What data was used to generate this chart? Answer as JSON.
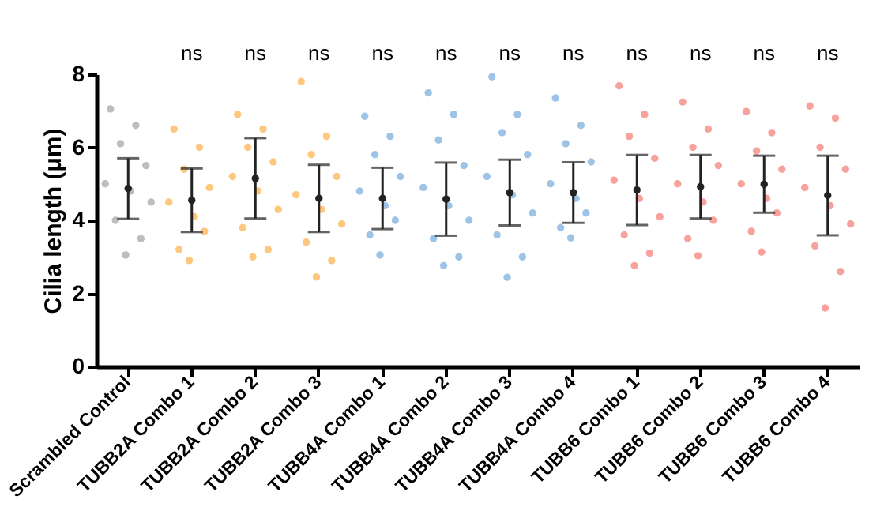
{
  "chart_data": {
    "type": "scatter",
    "ylabel": "Cilia length (μm)",
    "categories": [
      "Scrambled Control",
      "TUBB2A Combo 1",
      "TUBB2A Combo 2",
      "TUBB2A Combo 3",
      "TUBB4A Combo 1",
      "TUBB4A Combo 2",
      "TUBB4A Combo 3",
      "TUBB4A Combo 4",
      "TUBB6 Combo 1",
      "TUBB6 Combo 2",
      "TUBB6 Combo 3",
      "TUBB6 Combo 4"
    ],
    "ylim": [
      0,
      8
    ],
    "yticks": [
      0,
      2,
      4,
      6,
      8
    ],
    "grid": false,
    "legend": false,
    "marker": "circle",
    "series": [
      {
        "color": "#bdbdbd",
        "x": [
          "Scrambled Control",
          "Scrambled Control",
          "Scrambled Control",
          "Scrambled Control",
          "Scrambled Control",
          "Scrambled Control",
          "Scrambled Control",
          "Scrambled Control",
          "Scrambled Control",
          "Scrambled Control"
        ],
        "values": [
          5.0,
          7.05,
          4.0,
          6.1,
          3.05,
          4.8,
          6.6,
          3.5,
          5.5,
          4.5
        ]
      },
      {
        "color": "#fdc77e",
        "x": [
          "TUBB2A Combo 1",
          "TUBB2A Combo 1",
          "TUBB2A Combo 1",
          "TUBB2A Combo 1",
          "TUBB2A Combo 1",
          "TUBB2A Combo 1",
          "TUBB2A Combo 1",
          "TUBB2A Combo 1",
          "TUBB2A Combo 1",
          "TUBB2A Combo 2",
          "TUBB2A Combo 2",
          "TUBB2A Combo 2",
          "TUBB2A Combo 2",
          "TUBB2A Combo 2",
          "TUBB2A Combo 2",
          "TUBB2A Combo 2",
          "TUBB2A Combo 2",
          "TUBB2A Combo 2",
          "TUBB2A Combo 2",
          "TUBB2A Combo 3",
          "TUBB2A Combo 3",
          "TUBB2A Combo 3",
          "TUBB2A Combo 3",
          "TUBB2A Combo 3",
          "TUBB2A Combo 3",
          "TUBB2A Combo 3",
          "TUBB2A Combo 3",
          "TUBB2A Combo 3",
          "TUBB2A Combo 3"
        ],
        "values": [
          4.5,
          6.5,
          3.2,
          5.4,
          2.9,
          4.1,
          6.0,
          3.7,
          4.9,
          5.2,
          6.9,
          3.8,
          6.0,
          3.0,
          4.8,
          6.5,
          3.2,
          5.6,
          4.3,
          4.7,
          7.8,
          3.4,
          5.8,
          2.45,
          4.3,
          6.3,
          2.9,
          5.2,
          3.9
        ]
      },
      {
        "color": "#9dc3e6",
        "x": [
          "TUBB4A Combo 1",
          "TUBB4A Combo 1",
          "TUBB4A Combo 1",
          "TUBB4A Combo 1",
          "TUBB4A Combo 1",
          "TUBB4A Combo 1",
          "TUBB4A Combo 1",
          "TUBB4A Combo 1",
          "TUBB4A Combo 1",
          "TUBB4A Combo 2",
          "TUBB4A Combo 2",
          "TUBB4A Combo 2",
          "TUBB4A Combo 2",
          "TUBB4A Combo 2",
          "TUBB4A Combo 2",
          "TUBB4A Combo 2",
          "TUBB4A Combo 2",
          "TUBB4A Combo 2",
          "TUBB4A Combo 2",
          "TUBB4A Combo 3",
          "TUBB4A Combo 3",
          "TUBB4A Combo 3",
          "TUBB4A Combo 3",
          "TUBB4A Combo 3",
          "TUBB4A Combo 3",
          "TUBB4A Combo 3",
          "TUBB4A Combo 3",
          "TUBB4A Combo 3",
          "TUBB4A Combo 3",
          "TUBB4A Combo 4",
          "TUBB4A Combo 4",
          "TUBB4A Combo 4",
          "TUBB4A Combo 4",
          "TUBB4A Combo 4",
          "TUBB4A Combo 4",
          "TUBB4A Combo 4",
          "TUBB4A Combo 4",
          "TUBB4A Combo 4"
        ],
        "values": [
          4.8,
          6.85,
          3.6,
          5.8,
          3.05,
          4.4,
          6.3,
          4.0,
          5.2,
          4.9,
          7.49,
          3.5,
          6.2,
          2.76,
          4.4,
          6.9,
          3.0,
          5.5,
          4.0,
          5.2,
          7.93,
          3.6,
          6.4,
          2.44,
          4.7,
          6.9,
          3.0,
          5.8,
          4.2,
          5.0,
          7.35,
          3.8,
          6.1,
          3.52,
          4.6,
          6.6,
          4.2,
          5.6
        ]
      },
      {
        "color": "#f8a29e",
        "x": [
          "TUBB6 Combo 1",
          "TUBB6 Combo 1",
          "TUBB6 Combo 1",
          "TUBB6 Combo 1",
          "TUBB6 Combo 1",
          "TUBB6 Combo 1",
          "TUBB6 Combo 1",
          "TUBB6 Combo 1",
          "TUBB6 Combo 1",
          "TUBB6 Combo 1",
          "TUBB6 Combo 2",
          "TUBB6 Combo 2",
          "TUBB6 Combo 2",
          "TUBB6 Combo 2",
          "TUBB6 Combo 2",
          "TUBB6 Combo 2",
          "TUBB6 Combo 2",
          "TUBB6 Combo 2",
          "TUBB6 Combo 2",
          "TUBB6 Combo 3",
          "TUBB6 Combo 3",
          "TUBB6 Combo 3",
          "TUBB6 Combo 3",
          "TUBB6 Combo 3",
          "TUBB6 Combo 3",
          "TUBB6 Combo 3",
          "TUBB6 Combo 3",
          "TUBB6 Combo 3",
          "TUBB6 Combo 4",
          "TUBB6 Combo 4",
          "TUBB6 Combo 4",
          "TUBB6 Combo 4",
          "TUBB6 Combo 4",
          "TUBB6 Combo 4",
          "TUBB6 Combo 4",
          "TUBB6 Combo 4",
          "TUBB6 Combo 4",
          "TUBB6 Combo 4"
        ],
        "values": [
          5.1,
          7.68,
          3.6,
          6.3,
          2.76,
          4.6,
          6.9,
          3.1,
          5.7,
          4.1,
          5.0,
          7.24,
          3.5,
          6.0,
          3.03,
          4.5,
          6.5,
          4.0,
          5.5,
          5.0,
          6.98,
          3.7,
          5.9,
          3.13,
          4.6,
          6.4,
          4.2,
          5.4,
          4.9,
          7.13,
          3.3,
          6.0,
          1.6,
          4.4,
          6.8,
          2.6,
          5.4,
          3.9
        ]
      },
      {
        "color": "#222222",
        "values": [
          4.87,
          4.55,
          5.15,
          4.6,
          4.6,
          4.58,
          4.76,
          4.76,
          4.83,
          4.92,
          4.99,
          4.68
        ],
        "errors": [
          0.83,
          0.87,
          1.1,
          0.92,
          0.84,
          1.0,
          0.9,
          0.83,
          0.96,
          0.87,
          0.78,
          1.09
        ]
      }
    ],
    "annotations": [
      "ns",
      "ns",
      "ns",
      "ns",
      "ns",
      "ns",
      "ns",
      "ns",
      "ns",
      "ns",
      "ns"
    ]
  }
}
